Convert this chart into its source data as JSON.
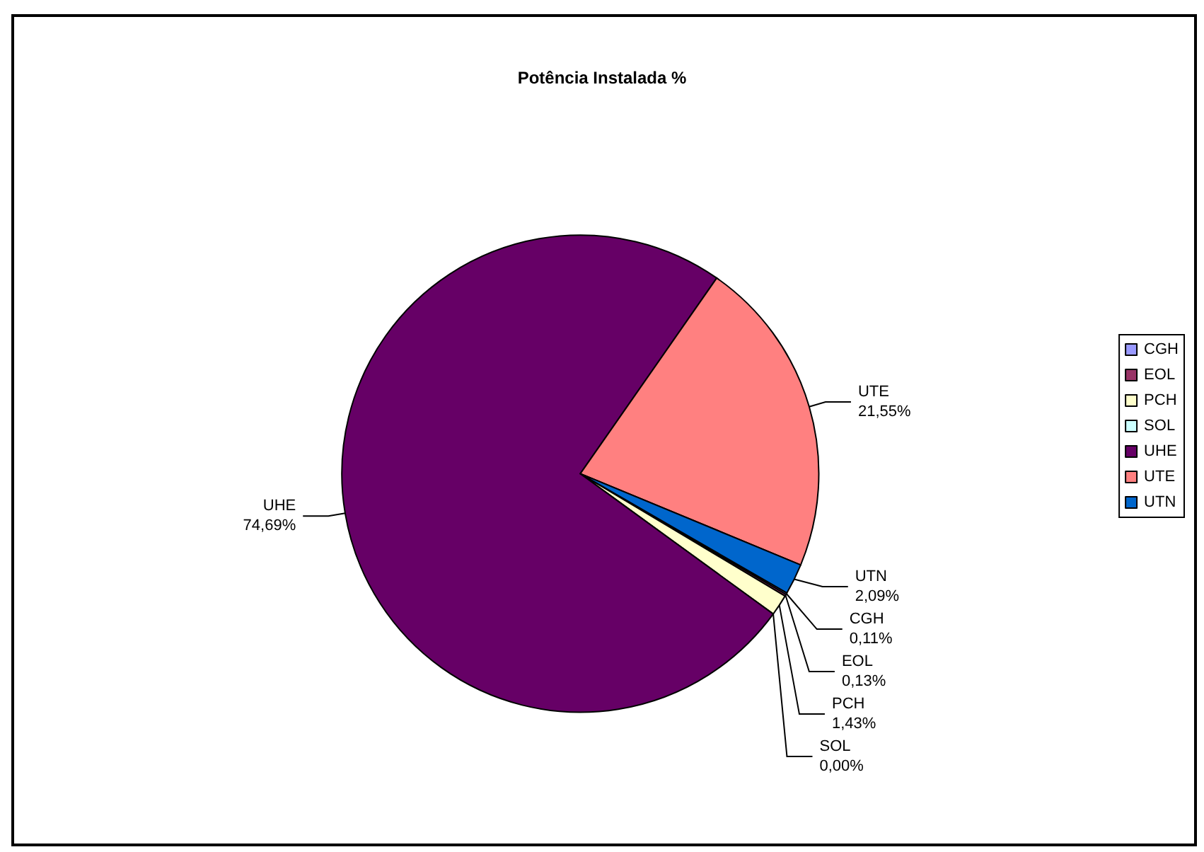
{
  "chart_data": {
    "type": "pie",
    "title": "Potência Instalada %",
    "categories": [
      "CGH",
      "EOL",
      "PCH",
      "SOL",
      "UHE",
      "UTE",
      "UTN"
    ],
    "values": [
      0.11,
      0.13,
      1.43,
      0.0,
      74.69,
      21.55,
      2.09
    ],
    "value_labels": [
      "0,11%",
      "0,13%",
      "1,43%",
      "0,00%",
      "74,69%",
      "21,55%",
      "2,09%"
    ],
    "colors": [
      "#9999ff",
      "#993366",
      "#ffffcc",
      "#ccffff",
      "#660066",
      "#ff8080",
      "#0066cc"
    ],
    "legend": "right"
  }
}
